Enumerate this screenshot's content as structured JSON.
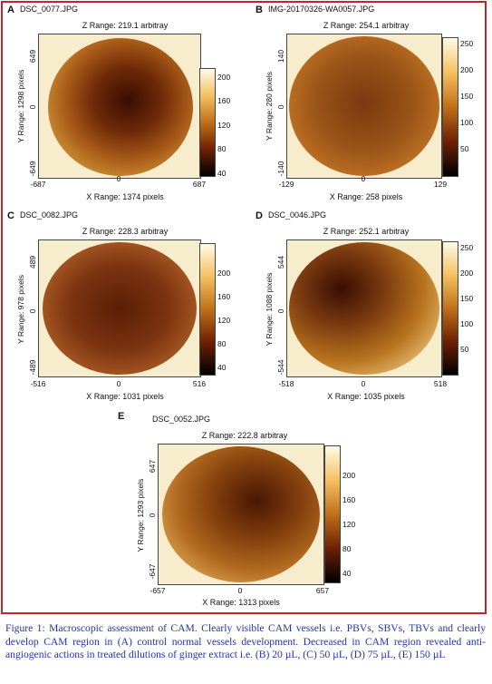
{
  "panels": [
    {
      "letter": "A",
      "filename": "DSC_0077.JPG",
      "zrange": "Z Range: 219.1 arbitray",
      "yticks": [
        "649",
        "0",
        "-649"
      ],
      "ylabel": "Y Range: 1298 pixels",
      "xticks": [
        "-687",
        "0",
        "687"
      ],
      "xlabel": "X Range: 1374 pixels",
      "cticks": [
        "200",
        "160",
        "120",
        "80",
        "40"
      ]
    },
    {
      "letter": "B",
      "filename": "IMG-20170326-WA0057.JPG",
      "zrange": "Z Range: 254.1 arbitray",
      "yticks": [
        "140",
        "0",
        "-140"
      ],
      "ylabel": "Y Range: 280 pixels",
      "xticks": [
        "-129",
        "0",
        "129"
      ],
      "xlabel": "X Range: 258 pixels",
      "cticks": [
        "250",
        "200",
        "150",
        "100",
        "50"
      ]
    },
    {
      "letter": "C",
      "filename": "DSC_0082.JPG",
      "zrange": "Z Range: 228.3 arbitray",
      "yticks": [
        "489",
        "0",
        "-489"
      ],
      "ylabel": "Y Range: 978 pixels",
      "xticks": [
        "-516",
        "0",
        "516"
      ],
      "xlabel": "X Range: 1031 pixels",
      "cticks": [
        "200",
        "160",
        "120",
        "80",
        "40"
      ]
    },
    {
      "letter": "D",
      "filename": "DSC_0046.JPG",
      "zrange": "Z Range: 252.1 arbitray",
      "yticks": [
        "544",
        "0",
        "-544"
      ],
      "ylabel": "Y Range: 1088 pixels",
      "xticks": [
        "-518",
        "0",
        "518"
      ],
      "xlabel": "X Range: 1035 pixels",
      "cticks": [
        "250",
        "200",
        "150",
        "100",
        "50"
      ]
    },
    {
      "letter": "E",
      "filename": "DSC_0052.JPG",
      "zrange": "Z Range: 222.8 arbitray",
      "yticks": [
        "647",
        "0",
        "-647"
      ],
      "ylabel": "Y Range: 1293 pixels",
      "xticks": [
        "-657",
        "0",
        "657"
      ],
      "xlabel": "X Range: 1313 pixels",
      "cticks": [
        "200",
        "160",
        "120",
        "80",
        "40"
      ]
    }
  ],
  "caption": "Figure 1: Macroscopic assessment of CAM. Clearly visible CAM vessels i.e. PBVs, SBVs, TBVs and clearly develop CAM region in (A) control normal vessels development. Decreased in CAM region revealed anti-angiogenic actions in treated dilutions of ginger extract i.e. (B) 20 µL, (C) 50 µL, (D) 75 µL, (E) 150 µL",
  "colors": {
    "frame": "#c0262c",
    "caption": "#2233aa"
  }
}
